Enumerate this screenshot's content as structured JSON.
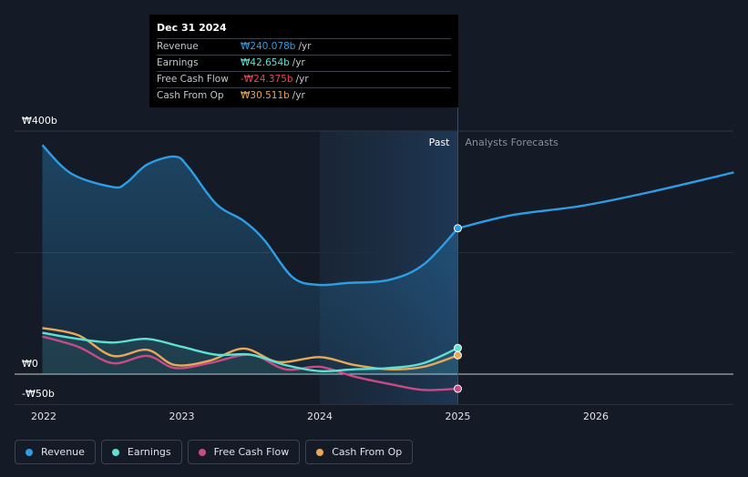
{
  "tooltip": {
    "date": "Dec 31 2024",
    "rows": [
      {
        "label": "Revenue",
        "value": "₩240.078b",
        "unit": "/yr",
        "color": "#2d9ee6"
      },
      {
        "label": "Earnings",
        "value": "₩42.654b",
        "unit": "/yr",
        "color": "#5ee0d2"
      },
      {
        "label": "Free Cash Flow",
        "value": "-₩24.375b",
        "unit": "/yr",
        "color": "#e8475a"
      },
      {
        "label": "Cash From Op",
        "value": "₩30.511b",
        "unit": "/yr",
        "color": "#e8a857"
      }
    ]
  },
  "legend": [
    {
      "label": "Revenue",
      "color": "#2d9ee6"
    },
    {
      "label": "Earnings",
      "color": "#5ee0d2"
    },
    {
      "label": "Free Cash Flow",
      "color": "#c94a86"
    },
    {
      "label": "Cash From Op",
      "color": "#e8a857"
    }
  ],
  "chart_data": {
    "type": "line",
    "title": "",
    "xlabel": "",
    "ylabel": "",
    "ylim": [
      -50,
      400
    ],
    "y_ticks": [
      {
        "value": 400,
        "label": "₩400b"
      },
      {
        "value": 0,
        "label": "₩0"
      },
      {
        "value": -50,
        "label": "-₩50b"
      }
    ],
    "x_ticks": [
      {
        "value": 2022,
        "label": "2022"
      },
      {
        "value": 2023,
        "label": "2023"
      },
      {
        "value": 2024,
        "label": "2024"
      },
      {
        "value": 2025,
        "label": "2025"
      },
      {
        "value": 2026,
        "label": "2026"
      }
    ],
    "xlim": [
      2021.8,
      2027.0
    ],
    "highlight_start": 2024.0,
    "divider_x": 2025.0,
    "past_label": "Past",
    "forecast_label": "Analysts Forecasts",
    "series": [
      {
        "name": "Revenue",
        "color": "#2d9ee6",
        "fill": true,
        "points": [
          [
            2021.99,
            377
          ],
          [
            2022.2,
            330
          ],
          [
            2022.5,
            308
          ],
          [
            2022.6,
            315
          ],
          [
            2022.75,
            345
          ],
          [
            2022.95,
            358
          ],
          [
            2023.05,
            340
          ],
          [
            2023.25,
            280
          ],
          [
            2023.45,
            252
          ],
          [
            2023.6,
            220
          ],
          [
            2023.8,
            160
          ],
          [
            2023.98,
            147
          ],
          [
            2024.2,
            150
          ],
          [
            2024.5,
            155
          ],
          [
            2024.75,
            180
          ],
          [
            2025.0,
            240
          ]
        ],
        "forecast": [
          [
            2025.0,
            240
          ],
          [
            2025.4,
            262
          ],
          [
            2025.9,
            277
          ],
          [
            2026.4,
            300
          ],
          [
            2027.0,
            332
          ]
        ],
        "end_marker": [
          2025.0,
          240
        ]
      },
      {
        "name": "Earnings",
        "color": "#5ee0d2",
        "fill": true,
        "points": [
          [
            2021.99,
            68
          ],
          [
            2022.25,
            58
          ],
          [
            2022.5,
            52
          ],
          [
            2022.75,
            58
          ],
          [
            2023.0,
            45
          ],
          [
            2023.25,
            32
          ],
          [
            2023.5,
            32
          ],
          [
            2023.75,
            15
          ],
          [
            2024.0,
            5
          ],
          [
            2024.25,
            8
          ],
          [
            2024.5,
            10
          ],
          [
            2024.75,
            18
          ],
          [
            2025.0,
            43
          ]
        ],
        "end_marker": [
          2025.0,
          43
        ]
      },
      {
        "name": "Free Cash Flow",
        "color": "#c94a86",
        "fill": false,
        "points": [
          [
            2021.99,
            62
          ],
          [
            2022.25,
            45
          ],
          [
            2022.5,
            18
          ],
          [
            2022.75,
            30
          ],
          [
            2022.95,
            10
          ],
          [
            2023.2,
            18
          ],
          [
            2023.5,
            32
          ],
          [
            2023.75,
            8
          ],
          [
            2024.0,
            12
          ],
          [
            2024.25,
            -4
          ],
          [
            2024.5,
            -16
          ],
          [
            2024.75,
            -26
          ],
          [
            2025.0,
            -24
          ]
        ],
        "end_marker": [
          2025.0,
          -24
        ]
      },
      {
        "name": "Cash From Op",
        "color": "#e8a857",
        "fill": false,
        "points": [
          [
            2021.99,
            76
          ],
          [
            2022.25,
            64
          ],
          [
            2022.5,
            30
          ],
          [
            2022.75,
            40
          ],
          [
            2022.95,
            15
          ],
          [
            2023.2,
            22
          ],
          [
            2023.45,
            42
          ],
          [
            2023.7,
            20
          ],
          [
            2024.0,
            28
          ],
          [
            2024.25,
            15
          ],
          [
            2024.5,
            8
          ],
          [
            2024.75,
            12
          ],
          [
            2025.0,
            31
          ]
        ],
        "end_marker": [
          2025.0,
          31
        ]
      }
    ]
  }
}
